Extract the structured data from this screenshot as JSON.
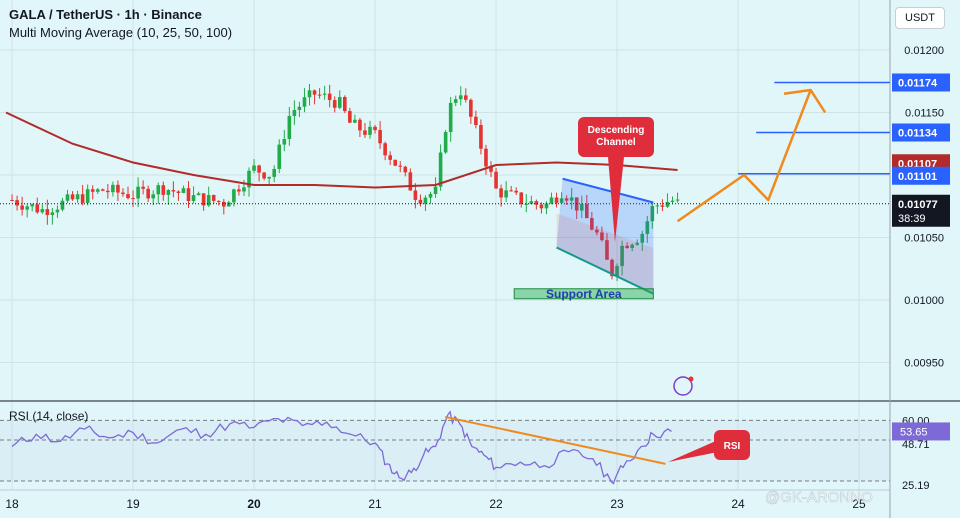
{
  "header": {
    "title": "GALA / TetherUS · 1h · Binance",
    "indicator": "Multi Moving Average (10, 25, 50, 100)",
    "rsi_label": "RSI (14, close)"
  },
  "currency_button": "USDT",
  "watermark": "@GK-ARONNO",
  "colors": {
    "background": "#e0f6f8",
    "up": "#22ab4a",
    "down": "#e5332f",
    "ma": "#b22a2a",
    "rsi": "#7d6ad6",
    "arrow": "#f08a1c",
    "level": "#2962ff",
    "channel_upper": "#2962ff",
    "channel_lower": "#14998c",
    "callout": "#e02d3c"
  },
  "annotations": {
    "channel": "Descending Channel",
    "support": "Support Area",
    "rsi": "RSI"
  },
  "price_axis": {
    "ticks": [
      "0.01200",
      "0.01150",
      "0.01050",
      "0.01000",
      "0.00950"
    ],
    "badges": {
      "level1": "0.01174",
      "level2": "0.01134",
      "ma": "0.01107",
      "level3": "0.01101",
      "last": "0.01077",
      "countdown": "38:39"
    }
  },
  "rsi_axis": {
    "ticks": [
      "60.00",
      "48.71",
      "25.19"
    ],
    "current": "53.65"
  },
  "chart_data": {
    "type": "candlestick",
    "symbol": "GALA / TetherUS",
    "interval": "1h",
    "exchange": "Binance",
    "x_ticks": [
      "18",
      "19",
      "20",
      "21",
      "22",
      "23",
      "24",
      "25"
    ],
    "ylim": [
      0.0092,
      0.0124
    ],
    "last_price": 0.01077,
    "close_path": [
      [
        18.0,
        0.0108
      ],
      [
        18.25,
        0.01072
      ],
      [
        18.5,
        0.0108
      ],
      [
        18.75,
        0.01088
      ],
      [
        19.0,
        0.01084
      ],
      [
        19.25,
        0.0109
      ],
      [
        19.5,
        0.01082
      ],
      [
        19.75,
        0.01078
      ],
      [
        20.0,
        0.01105
      ],
      [
        20.15,
        0.011
      ],
      [
        20.3,
        0.0115
      ],
      [
        20.5,
        0.01165
      ],
      [
        20.7,
        0.01158
      ],
      [
        20.8,
        0.0114
      ],
      [
        21.0,
        0.01132
      ],
      [
        21.2,
        0.01105
      ],
      [
        21.35,
        0.01082
      ],
      [
        21.5,
        0.01086
      ],
      [
        21.6,
        0.0115
      ],
      [
        21.7,
        0.0117
      ],
      [
        21.85,
        0.0113
      ],
      [
        22.0,
        0.01088
      ],
      [
        22.2,
        0.0108
      ],
      [
        22.4,
        0.01075
      ],
      [
        22.55,
        0.01088
      ],
      [
        22.7,
        0.01072
      ],
      [
        22.85,
        0.0105
      ],
      [
        22.95,
        0.0102
      ],
      [
        23.05,
        0.01045
      ],
      [
        23.2,
        0.01052
      ],
      [
        23.3,
        0.01075
      ],
      [
        23.45,
        0.0108
      ],
      [
        23.5,
        0.01077
      ]
    ],
    "moving_average": [
      [
        17.95,
        0.0115
      ],
      [
        18.5,
        0.01125
      ],
      [
        19.0,
        0.0111
      ],
      [
        19.5,
        0.011
      ],
      [
        20.0,
        0.01092
      ],
      [
        20.5,
        0.01092
      ],
      [
        21.0,
        0.0109
      ],
      [
        21.5,
        0.01092
      ],
      [
        22.0,
        0.01108
      ],
      [
        22.5,
        0.0111
      ],
      [
        23.0,
        0.01108
      ],
      [
        23.5,
        0.01104
      ]
    ],
    "descending_channel": {
      "upper": [
        [
          22.55,
          0.01097
        ],
        [
          23.3,
          0.01078
        ]
      ],
      "lower": [
        [
          22.5,
          0.01042
        ],
        [
          23.3,
          0.01005
        ]
      ]
    },
    "support_area": [
      22.15,
      23.3,
      0.01001,
      0.01009
    ],
    "horizontal_levels": [
      0.01174,
      0.01134,
      0.01101
    ],
    "projection_path": [
      [
        23.5,
        0.01063
      ],
      [
        24.05,
        0.011
      ],
      [
        24.25,
        0.0108
      ],
      [
        24.6,
        0.01168
      ],
      [
        24.75,
        0.0115
      ]
    ],
    "rsi": {
      "ylim": [
        20,
        70
      ],
      "levels": [
        60.0,
        48.71,
        25.19
      ],
      "current": 53.65,
      "values": [
        [
          18.0,
          45
        ],
        [
          18.2,
          52
        ],
        [
          18.4,
          48
        ],
        [
          18.6,
          55
        ],
        [
          18.8,
          50
        ],
        [
          19.0,
          53
        ],
        [
          19.2,
          47
        ],
        [
          19.4,
          55
        ],
        [
          19.6,
          52
        ],
        [
          19.8,
          58
        ],
        [
          20.0,
          56
        ],
        [
          20.2,
          61
        ],
        [
          20.4,
          57
        ],
        [
          20.6,
          59
        ],
        [
          20.8,
          52
        ],
        [
          21.0,
          47
        ],
        [
          21.1,
          35
        ],
        [
          21.2,
          27
        ],
        [
          21.3,
          30
        ],
        [
          21.4,
          40
        ],
        [
          21.5,
          45
        ],
        [
          21.6,
          63
        ],
        [
          21.7,
          58
        ],
        [
          21.8,
          45
        ],
        [
          21.9,
          40
        ],
        [
          22.0,
          33
        ],
        [
          22.2,
          36
        ],
        [
          22.4,
          34
        ],
        [
          22.6,
          42
        ],
        [
          22.8,
          38
        ],
        [
          22.95,
          25
        ],
        [
          23.05,
          33
        ],
        [
          23.2,
          45
        ],
        [
          23.3,
          52
        ],
        [
          23.45,
          53.65
        ]
      ],
      "trendline": [
        [
          21.58,
          62
        ],
        [
          23.4,
          35
        ]
      ]
    }
  }
}
